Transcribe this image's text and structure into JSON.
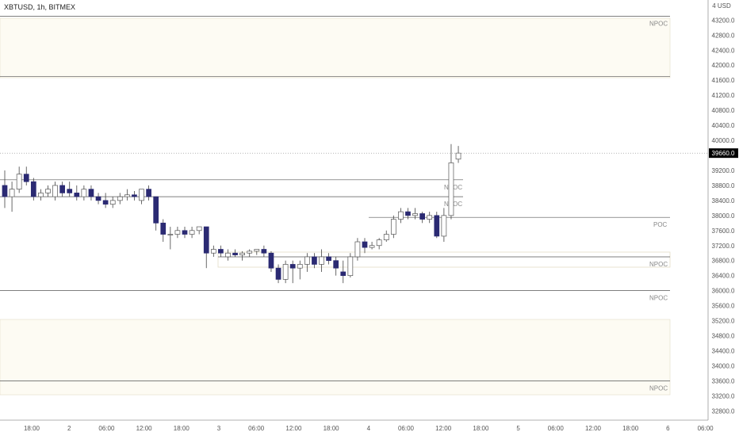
{
  "header": {
    "title": "XBTUSD, 1h, BITMEX"
  },
  "axis": {
    "currency": "4 USD"
  },
  "colors": {
    "bearish": "#2b2a73",
    "bullish": "#ffffff",
    "wick": "#444444",
    "zone_fill": "#fdfbf3",
    "zone_border": "#e3ddc6",
    "grid": "#cfcfcf",
    "price_tag_bg": "#000000"
  },
  "chart_data": {
    "type": "candlestick",
    "symbol": "XBTUSD",
    "timeframe": "1h",
    "exchange": "BITMEX",
    "current_price": "39660.0",
    "ylim": [
      32600,
      43600
    ],
    "y_ticks": [
      "43200.0",
      "42800.0",
      "42400.0",
      "42000.0",
      "41600.0",
      "41200.0",
      "40800.0",
      "40400.0",
      "40000.0",
      "39200.0",
      "38800.0",
      "38400.0",
      "38000.0",
      "37600.0",
      "37200.0",
      "36800.0",
      "36400.0",
      "36000.0",
      "35600.0",
      "35200.0",
      "34800.0",
      "34400.0",
      "34000.0",
      "33600.0",
      "33200.0",
      "32800.0"
    ],
    "x_ticks": [
      "18:00",
      "2",
      "06:00",
      "12:00",
      "18:00",
      "3",
      "06:00",
      "12:00",
      "18:00",
      "4",
      "06:00",
      "12:00",
      "18:00",
      "5",
      "06:00",
      "12:00",
      "18:00",
      "6",
      "06:00"
    ],
    "levels": [
      {
        "label": "NPOC",
        "price": 43300
      },
      {
        "label": "",
        "price": 41700
      },
      {
        "label": "NPOC",
        "price": 38950
      },
      {
        "label": "NPOC",
        "price": 38500
      },
      {
        "label": "POC",
        "price": 37950
      },
      {
        "label": "NPOC",
        "price": 36900
      },
      {
        "label": "NPOC",
        "price": 36000
      },
      {
        "label": "NPOC",
        "price": 33600
      }
    ],
    "candles": [
      {
        "o": 38800,
        "h": 39200,
        "l": 38200,
        "c": 38500
      },
      {
        "o": 38500,
        "h": 38900,
        "l": 38100,
        "c": 38700
      },
      {
        "o": 38700,
        "h": 39300,
        "l": 38600,
        "c": 39100
      },
      {
        "o": 39100,
        "h": 39300,
        "l": 38800,
        "c": 38900
      },
      {
        "o": 38900,
        "h": 39000,
        "l": 38400,
        "c": 38500
      },
      {
        "o": 38500,
        "h": 38700,
        "l": 38400,
        "c": 38600
      },
      {
        "o": 38600,
        "h": 38800,
        "l": 38500,
        "c": 38700
      },
      {
        "o": 38500,
        "h": 38900,
        "l": 38400,
        "c": 38800
      },
      {
        "o": 38800,
        "h": 38900,
        "l": 38500,
        "c": 38600
      },
      {
        "o": 38700,
        "h": 38900,
        "l": 38500,
        "c": 38600
      },
      {
        "o": 38600,
        "h": 38800,
        "l": 38400,
        "c": 38500
      },
      {
        "o": 38500,
        "h": 38800,
        "l": 38400,
        "c": 38700
      },
      {
        "o": 38700,
        "h": 38800,
        "l": 38400,
        "c": 38500
      },
      {
        "o": 38500,
        "h": 38600,
        "l": 38300,
        "c": 38400
      },
      {
        "o": 38400,
        "h": 38600,
        "l": 38200,
        "c": 38300
      },
      {
        "o": 38300,
        "h": 38500,
        "l": 38200,
        "c": 38400
      },
      {
        "o": 38400,
        "h": 38600,
        "l": 38300,
        "c": 38500
      },
      {
        "o": 38500,
        "h": 38700,
        "l": 38400,
        "c": 38550
      },
      {
        "o": 38550,
        "h": 38650,
        "l": 38400,
        "c": 38500
      },
      {
        "o": 38400,
        "h": 38700,
        "l": 38300,
        "c": 38700
      },
      {
        "o": 38700,
        "h": 38800,
        "l": 38400,
        "c": 38500
      },
      {
        "o": 38500,
        "h": 38500,
        "l": 37600,
        "c": 37800
      },
      {
        "o": 37800,
        "h": 37900,
        "l": 37300,
        "c": 37500
      },
      {
        "o": 37500,
        "h": 37700,
        "l": 37100,
        "c": 37500
      },
      {
        "o": 37500,
        "h": 37700,
        "l": 37400,
        "c": 37600
      },
      {
        "o": 37600,
        "h": 37700,
        "l": 37400,
        "c": 37500
      },
      {
        "o": 37500,
        "h": 37700,
        "l": 37400,
        "c": 37600
      },
      {
        "o": 37600,
        "h": 37700,
        "l": 37500,
        "c": 37700
      },
      {
        "o": 37700,
        "h": 37700,
        "l": 36600,
        "c": 37000
      },
      {
        "o": 37000,
        "h": 37200,
        "l": 36900,
        "c": 37100
      },
      {
        "o": 37100,
        "h": 37200,
        "l": 36900,
        "c": 37000
      },
      {
        "o": 36900,
        "h": 37100,
        "l": 36800,
        "c": 37000
      },
      {
        "o": 37000,
        "h": 37100,
        "l": 36900,
        "c": 36950
      },
      {
        "o": 36950,
        "h": 37050,
        "l": 36800,
        "c": 37000
      },
      {
        "o": 37000,
        "h": 37100,
        "l": 36900,
        "c": 37050
      },
      {
        "o": 37050,
        "h": 37100,
        "l": 36950,
        "c": 37100
      },
      {
        "o": 37100,
        "h": 37200,
        "l": 36900,
        "c": 37000
      },
      {
        "o": 37000,
        "h": 37050,
        "l": 36500,
        "c": 36600
      },
      {
        "o": 36600,
        "h": 36700,
        "l": 36200,
        "c": 36300
      },
      {
        "o": 36300,
        "h": 36800,
        "l": 36200,
        "c": 36700
      },
      {
        "o": 36700,
        "h": 36800,
        "l": 36200,
        "c": 36600
      },
      {
        "o": 36600,
        "h": 36800,
        "l": 36300,
        "c": 36700
      },
      {
        "o": 36700,
        "h": 37000,
        "l": 36500,
        "c": 36900
      },
      {
        "o": 36900,
        "h": 37000,
        "l": 36600,
        "c": 36700
      },
      {
        "o": 36700,
        "h": 37100,
        "l": 36500,
        "c": 36900
      },
      {
        "o": 36900,
        "h": 37000,
        "l": 36700,
        "c": 36800
      },
      {
        "o": 36800,
        "h": 36900,
        "l": 36400,
        "c": 36600
      },
      {
        "o": 36500,
        "h": 36800,
        "l": 36200,
        "c": 36400
      },
      {
        "o": 36400,
        "h": 37000,
        "l": 36350,
        "c": 36900
      },
      {
        "o": 36900,
        "h": 37400,
        "l": 36800,
        "c": 37300
      },
      {
        "o": 37300,
        "h": 37400,
        "l": 37000,
        "c": 37150
      },
      {
        "o": 37150,
        "h": 37300,
        "l": 37100,
        "c": 37200
      },
      {
        "o": 37200,
        "h": 37400,
        "l": 37100,
        "c": 37350
      },
      {
        "o": 37350,
        "h": 37600,
        "l": 37300,
        "c": 37500
      },
      {
        "o": 37500,
        "h": 38000,
        "l": 37400,
        "c": 37900
      },
      {
        "o": 37900,
        "h": 38200,
        "l": 37800,
        "c": 38100
      },
      {
        "o": 38100,
        "h": 38200,
        "l": 37900,
        "c": 38000
      },
      {
        "o": 38000,
        "h": 38200,
        "l": 37900,
        "c": 38050
      },
      {
        "o": 38050,
        "h": 38100,
        "l": 37800,
        "c": 37900
      },
      {
        "o": 37900,
        "h": 38100,
        "l": 37800,
        "c": 38000
      },
      {
        "o": 38000,
        "h": 38100,
        "l": 37400,
        "c": 37450
      },
      {
        "o": 37450,
        "h": 38200,
        "l": 37300,
        "c": 38000
      },
      {
        "o": 38000,
        "h": 39900,
        "l": 37900,
        "c": 39400
      },
      {
        "o": 39500,
        "h": 39850,
        "l": 39400,
        "c": 39660
      }
    ]
  }
}
